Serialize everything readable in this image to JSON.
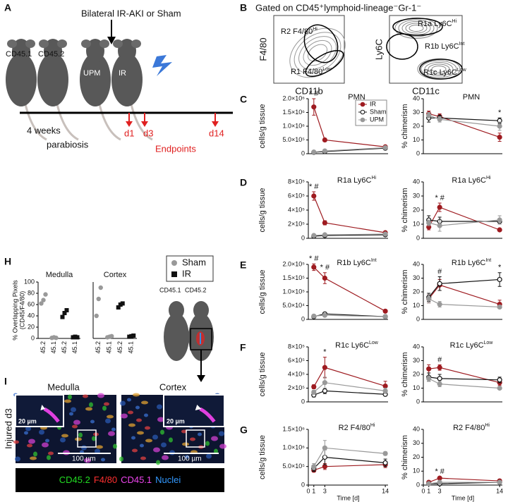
{
  "panel_labels": [
    "A",
    "B",
    "C",
    "D",
    "E",
    "F",
    "G",
    "H",
    "I"
  ],
  "panel_a": {
    "treatment": "Bilateral IR-AKI or Sham",
    "mouse_left": "CD45.1",
    "mouse_right": "CD45.2",
    "upm": "UPM",
    "ir": "IR",
    "duration": "4 weeks",
    "procedure": "parabiosis",
    "endpoints": [
      "d1",
      "d3",
      "d14"
    ],
    "endpoints_label": "Endpoints"
  },
  "panel_b": {
    "title": "Gated on CD45⁺lymphoid-lineage⁻Gr-1⁻",
    "plots": [
      {
        "ylabel": "F4/80",
        "xlabel": "CD11b",
        "gates": [
          {
            "text": "R2 F4/80",
            "sup": "Hi"
          },
          {
            "text": "R1 F4/80",
            "sup": "Low"
          }
        ]
      },
      {
        "ylabel": "Ly6C",
        "xlabel": "CD11c",
        "gates": [
          {
            "text": "R1a Ly6C",
            "sup": "Hi"
          },
          {
            "text": "R1b Ly6C",
            "sup": "Int"
          },
          {
            "text": "R1c Ly6C",
            "sup": "Low"
          }
        ]
      }
    ]
  },
  "panel_h": {
    "mice": [
      "CD45.1",
      "CD45.2"
    ]
  },
  "panel_i": {
    "regions": [
      "Medulla",
      "Cortex"
    ],
    "condition": "Injured d3",
    "inset_scale": "20 µm",
    "scale": "100 µm",
    "stains": [
      {
        "text": "CD45.2",
        "color": "#22dd22"
      },
      {
        "text": "F4/80",
        "color": "#ff3030"
      },
      {
        "text": "CD45.1",
        "color": "#ee44ee"
      },
      {
        "text": "Nuclei",
        "color": "#3399ff"
      }
    ]
  },
  "chart_data": [
    {
      "type": "line",
      "title": "PMN",
      "ylabel": "cells/g tissue",
      "x": [
        1,
        3,
        14
      ],
      "xlim": [
        0,
        14.5
      ],
      "ylim": [
        0,
        2000000
      ],
      "yticks": [
        0,
        {
          "value": 500000,
          "label": "5.0×10⁵"
        },
        {
          "value": 1000000,
          "label": "1.0×10⁶"
        },
        {
          "value": 1500000,
          "label": "1.5×10⁶"
        },
        {
          "value": 2000000,
          "label": "2.0×10⁶"
        }
      ],
      "legend": "upper right",
      "series": [
        {
          "name": "IR",
          "color": "#9e1b20",
          "filled": true,
          "values": [
            1700000,
            500000,
            250000
          ],
          "errors": [
            300000,
            60000,
            40000
          ]
        },
        {
          "name": "Sham",
          "color": "#111111",
          "filled": false,
          "values": [
            50000,
            80000,
            200000
          ],
          "errors": [
            20000,
            30000,
            40000
          ]
        },
        {
          "name": "UPM",
          "color": "#999999",
          "filled": true,
          "values": [
            60000,
            100000,
            220000
          ],
          "errors": [
            20000,
            30000,
            40000
          ]
        }
      ],
      "annotations": [
        {
          "x": 1,
          "text": "* #"
        }
      ]
    },
    {
      "type": "line",
      "title": "PMN",
      "ylabel": "% chimerism",
      "x": [
        1,
        3,
        14
      ],
      "xlim": [
        0,
        14.5
      ],
      "ylim": [
        0,
        40
      ],
      "yticks": [
        0,
        10,
        20,
        30,
        40
      ],
      "series": [
        {
          "color": "#9e1b20",
          "filled": true,
          "values": [
            29,
            27,
            12
          ],
          "errors": [
            2,
            2,
            3
          ]
        },
        {
          "color": "#111111",
          "filled": false,
          "values": [
            26,
            26,
            24
          ],
          "errors": [
            3,
            2,
            2
          ]
        },
        {
          "color": "#999999",
          "filled": true,
          "values": [
            28,
            25,
            20
          ],
          "errors": [
            2,
            2,
            3
          ]
        }
      ],
      "annotations": [
        {
          "x": 14,
          "text": "*"
        }
      ]
    },
    {
      "type": "line",
      "title": "R1a Ly6C",
      "title_superscript": "Hi",
      "ylabel": "cells/g tissue",
      "x": [
        1,
        3,
        14
      ],
      "xlim": [
        0,
        14.5
      ],
      "ylim": [
        0,
        800000
      ],
      "yticks": [
        0,
        {
          "value": 200000,
          "label": "2×10⁵"
        },
        {
          "value": 400000,
          "label": "4×10⁵"
        },
        {
          "value": 600000,
          "label": "6×10⁵"
        },
        {
          "value": 800000,
          "label": "8×10⁵"
        }
      ],
      "series": [
        {
          "color": "#9e1b20",
          "filled": true,
          "values": [
            600000,
            220000,
            80000
          ],
          "errors": [
            60000,
            30000,
            15000
          ]
        },
        {
          "color": "#111111",
          "filled": false,
          "values": [
            30000,
            40000,
            50000
          ],
          "errors": [
            10000,
            10000,
            10000
          ]
        },
        {
          "color": "#999999",
          "filled": true,
          "values": [
            40000,
            50000,
            60000
          ],
          "errors": [
            10000,
            10000,
            10000
          ]
        }
      ],
      "annotations": [
        {
          "x": 1,
          "text": "* #"
        }
      ]
    },
    {
      "type": "line",
      "title": "R1a Ly6C",
      "title_superscript": "Hi",
      "ylabel": "% chimerism",
      "x": [
        1,
        3,
        14
      ],
      "xlim": [
        0,
        14.5
      ],
      "ylim": [
        0,
        40
      ],
      "yticks": [
        0,
        10,
        20,
        30,
        40
      ],
      "series": [
        {
          "color": "#9e1b20",
          "filled": true,
          "values": [
            8,
            22,
            6
          ],
          "errors": [
            2,
            3,
            1
          ]
        },
        {
          "color": "#111111",
          "filled": false,
          "values": [
            13,
            12,
            12
          ],
          "errors": [
            3,
            3,
            2
          ]
        },
        {
          "color": "#999999",
          "filled": true,
          "values": [
            11,
            9,
            13
          ],
          "errors": [
            2,
            4,
            3
          ]
        }
      ],
      "annotations": [
        {
          "x": 3,
          "text": "* #"
        }
      ]
    },
    {
      "type": "line",
      "title": "R1b Ly6C",
      "title_superscript": "Int",
      "ylabel": "cells/g tissue",
      "x": [
        1,
        3,
        14
      ],
      "xlim": [
        0,
        14.5
      ],
      "ylim": [
        0,
        200000
      ],
      "yticks": [
        0,
        {
          "value": 50000,
          "label": "5.0×10⁴"
        },
        {
          "value": 100000,
          "label": "1.0×10⁵"
        },
        {
          "value": 150000,
          "label": "1.5×10⁵"
        },
        {
          "value": 200000,
          "label": "2.0×10⁵"
        }
      ],
      "series": [
        {
          "color": "#9e1b20",
          "filled": true,
          "values": [
            190000,
            150000,
            30000
          ],
          "errors": [
            12000,
            20000,
            5000
          ]
        },
        {
          "color": "#111111",
          "filled": false,
          "values": [
            10000,
            20000,
            10000
          ],
          "errors": [
            3000,
            4000,
            2000
          ]
        },
        {
          "color": "#999999",
          "filled": true,
          "values": [
            12000,
            15000,
            10000
          ],
          "errors": [
            3000,
            4000,
            2000
          ]
        }
      ],
      "annotations": [
        {
          "x": 1,
          "text": "* #"
        },
        {
          "x": 3,
          "text": "* #"
        }
      ]
    },
    {
      "type": "line",
      "title": "R1b Ly6C",
      "title_superscript": "Int",
      "ylabel": "% chimerism",
      "x": [
        1,
        3,
        14
      ],
      "xlim": [
        0,
        14.5
      ],
      "ylim": [
        0,
        40
      ],
      "yticks": [
        0,
        10,
        20,
        30,
        40
      ],
      "series": [
        {
          "color": "#9e1b20",
          "filled": true,
          "values": [
            15,
            25,
            11
          ],
          "errors": [
            3,
            4,
            3
          ]
        },
        {
          "color": "#111111",
          "filled": false,
          "values": [
            16,
            26,
            29
          ],
          "errors": [
            3,
            5,
            5
          ]
        },
        {
          "color": "#999999",
          "filled": true,
          "values": [
            15,
            11,
            9
          ],
          "errors": [
            3,
            2,
            1
          ]
        }
      ],
      "annotations": [
        {
          "x": 3,
          "text": "#"
        },
        {
          "x": 14,
          "text": "*"
        }
      ]
    },
    {
      "type": "line",
      "title": "R1c Ly6C",
      "title_superscript": "Low",
      "ylabel": "cells/g tissue",
      "x": [
        1,
        3,
        14
      ],
      "xlim": [
        0,
        14.5
      ],
      "ylim": [
        0,
        800000
      ],
      "yticks": [
        0,
        {
          "value": 200000,
          "label": "2×10⁵"
        },
        {
          "value": 400000,
          "label": "4×10⁵"
        },
        {
          "value": 600000,
          "label": "6×10⁵"
        },
        {
          "value": 800000,
          "label": "8×10⁵"
        }
      ],
      "series": [
        {
          "color": "#9e1b20",
          "filled": true,
          "values": [
            220000,
            500000,
            230000
          ],
          "errors": [
            30000,
            150000,
            70000
          ]
        },
        {
          "color": "#111111",
          "filled": false,
          "values": [
            100000,
            160000,
            110000
          ],
          "errors": [
            30000,
            40000,
            20000
          ]
        },
        {
          "color": "#999999",
          "filled": true,
          "values": [
            140000,
            280000,
            160000
          ],
          "errors": [
            30000,
            80000,
            40000
          ]
        }
      ],
      "annotations": [
        {
          "x": 3,
          "text": "*"
        }
      ]
    },
    {
      "type": "line",
      "title": "R1c Ly6C",
      "title_superscript": "Low",
      "ylabel": "% chimerism",
      "x": [
        1,
        3,
        14
      ],
      "xlim": [
        0,
        14.5
      ],
      "ylim": [
        0,
        40
      ],
      "yticks": [
        0,
        10,
        20,
        30,
        40
      ],
      "series": [
        {
          "color": "#9e1b20",
          "filled": true,
          "values": [
            24,
            25,
            14
          ],
          "errors": [
            3,
            2,
            2
          ]
        },
        {
          "color": "#111111",
          "filled": false,
          "values": [
            18,
            17,
            16
          ],
          "errors": [
            3,
            3,
            2
          ]
        },
        {
          "color": "#999999",
          "filled": true,
          "values": [
            17,
            13,
            10
          ],
          "errors": [
            2,
            2,
            1
          ]
        }
      ],
      "annotations": [
        {
          "x": 3,
          "text": "#"
        }
      ]
    },
    {
      "type": "line",
      "title": "R2 F4/80",
      "title_superscript": "Hi",
      "ylabel": "cells/g tissue",
      "xlabel": "Time [d]",
      "x": [
        1,
        3,
        14
      ],
      "xlim": [
        0,
        14.5
      ],
      "xticks": [
        0,
        1,
        3,
        14
      ],
      "ylim": [
        0,
        1500000
      ],
      "yticks": [
        0,
        {
          "value": 500000,
          "label": "5.0×10⁵"
        },
        {
          "value": 1000000,
          "label": "1.0×10⁶"
        },
        {
          "value": 1500000,
          "label": "1.5×10⁶"
        }
      ],
      "series": [
        {
          "color": "#9e1b20",
          "filled": true,
          "values": [
            400000,
            500000,
            550000
          ],
          "errors": [
            50000,
            80000,
            80000
          ]
        },
        {
          "color": "#111111",
          "filled": false,
          "values": [
            450000,
            750000,
            600000
          ],
          "errors": [
            80000,
            200000,
            100000
          ]
        },
        {
          "color": "#999999",
          "filled": true,
          "values": [
            500000,
            1000000,
            850000
          ],
          "errors": [
            80000,
            200000,
            50000
          ]
        }
      ],
      "annotations": []
    },
    {
      "type": "line",
      "title": "R2 F4/80",
      "title_superscript": "Hi",
      "ylabel": "% chimerism",
      "xlabel": "Time [d]",
      "x": [
        1,
        3,
        14
      ],
      "xlim": [
        0,
        14.5
      ],
      "xticks": [
        0,
        1,
        3,
        14
      ],
      "ylim": [
        0,
        40
      ],
      "yticks": [
        0,
        10,
        20,
        30,
        40
      ],
      "series": [
        {
          "color": "#9e1b20",
          "filled": true,
          "values": [
            2,
            5,
            3
          ],
          "errors": [
            1,
            1,
            1
          ]
        },
        {
          "color": "#111111",
          "filled": false,
          "values": [
            1,
            1,
            2
          ],
          "errors": [
            1,
            1,
            1
          ]
        },
        {
          "color": "#999999",
          "filled": true,
          "values": [
            1,
            2,
            2
          ],
          "errors": [
            1,
            1,
            1
          ]
        }
      ],
      "annotations": [
        {
          "x": 3,
          "text": "* #"
        }
      ]
    },
    {
      "type": "strip",
      "title": "Medulla",
      "ylabel": [
        "% Overlapping Pixels",
        "(CD45/F4/80)"
      ],
      "categories": [
        "45.2",
        "45.1",
        "45.2",
        "45.1"
      ],
      "ylim": [
        0,
        100
      ],
      "yticks": [
        0,
        20,
        40,
        60,
        80,
        100
      ],
      "series": [
        {
          "name": "Sham",
          "color": "#999999",
          "marker": "circle",
          "values": [
            [
              62,
              68,
              78
            ],
            [
              1,
              2,
              1
            ],
            null,
            null
          ]
        },
        {
          "name": "IR",
          "color": "#111111",
          "marker": "square",
          "values": [
            null,
            null,
            [
              38,
              45,
              50
            ],
            [
              2,
              3,
              2
            ]
          ]
        }
      ]
    },
    {
      "type": "strip",
      "title": "Cortex",
      "categories": [
        "45.2",
        "45.1",
        "45.2",
        "45.1"
      ],
      "ylim": [
        0,
        100
      ],
      "series": [
        {
          "color": "#999999",
          "marker": "circle",
          "values": [
            [
              40,
              70,
              90
            ],
            [
              2,
              3,
              4
            ],
            null,
            null
          ]
        },
        {
          "color": "#111111",
          "marker": "square",
          "values": [
            null,
            null,
            [
              55,
              60,
              62
            ],
            [
              3,
              4,
              5
            ]
          ]
        }
      ]
    }
  ]
}
